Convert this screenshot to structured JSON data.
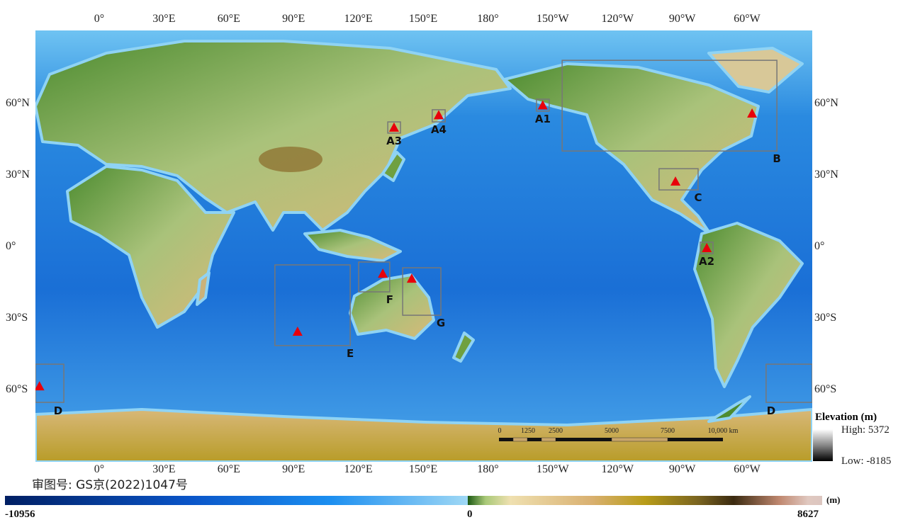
{
  "map": {
    "top_lon_labels": [
      "0°",
      "30°E",
      "60°E",
      "90°E",
      "120°E",
      "150°E",
      "180°",
      "150°W",
      "120°W",
      "90°W",
      "60°W"
    ],
    "bottom_lon_labels": [
      "0°",
      "30°E",
      "60°E",
      "90°E",
      "120°E",
      "150°E",
      "180°",
      "150°W",
      "120°W",
      "90°W",
      "60°W"
    ],
    "lat_labels": [
      "60°N",
      "30°N",
      "0°",
      "30°S",
      "60°S"
    ],
    "colors": {
      "ocean_deep": "#0a55c8",
      "ocean_shelf": "#8fd3f4",
      "land_low": "#3f7d25",
      "land_mid": "#d8b878",
      "land_high": "#7a5a20",
      "marker": "#e8000b",
      "box": "#777777"
    },
    "regions": [
      {
        "label": "A1",
        "lon": [
          -157.4,
          -151.5
        ],
        "lat": [
          56.7,
          61.7
        ]
      },
      {
        "label": "A2",
        "lon": [
          -81.5,
          -75.6
        ],
        "lat": [
          -3,
          1.8
        ]
      },
      {
        "label": "A3",
        "lon": [
          133.7,
          139.6
        ],
        "lat": [
          47.5,
          52.2
        ]
      },
      {
        "label": "A4",
        "lon": [
          154.3,
          160.3
        ],
        "lat": [
          52.2,
          57.3
        ]
      },
      {
        "label": "B",
        "lon": [
          -145.5,
          -46
        ],
        "lat": [
          40,
          78
        ]
      },
      {
        "label": "C",
        "lon": [
          -100.6,
          -82.5
        ],
        "lat": [
          23.7,
          32.6
        ]
      },
      {
        "label": "D",
        "lon": [
          -51,
          -16.4
        ],
        "lat": [
          -65.3,
          -49.3
        ]
      },
      {
        "label": "E",
        "lon": [
          81.4,
          116.3
        ],
        "lat": [
          -41.5,
          -7.7
        ]
      },
      {
        "label": "F",
        "lon": [
          120.2,
          134.6
        ],
        "lat": [
          -19,
          -6.5
        ]
      },
      {
        "label": "G",
        "lon": [
          140.6,
          158.3
        ],
        "lat": [
          -28.8,
          -8.9
        ]
      }
    ],
    "markers": [
      {
        "region": "A1",
        "lon": -154.5,
        "lat": 59.2
      },
      {
        "region": "A2",
        "lon": -78.5,
        "lat": -0.6
      },
      {
        "region": "A3",
        "lon": 136.6,
        "lat": 49.9
      },
      {
        "region": "A4",
        "lon": 157.3,
        "lat": 55.1
      },
      {
        "region": "B",
        "lon": -57.5,
        "lat": 55.8
      },
      {
        "region": "C",
        "lon": -93,
        "lat": 27.3
      },
      {
        "region": "D",
        "lon": -27.7,
        "lat": -58.5
      },
      {
        "region": "E",
        "lon": 91.9,
        "lat": -35.6
      },
      {
        "region": "F",
        "lon": 131.4,
        "lat": -11.3
      },
      {
        "region": "G",
        "lon": 144.8,
        "lat": -13.4
      }
    ]
  },
  "scale_bar": {
    "labels": [
      "0",
      "1250",
      "2500",
      "5000",
      "7500",
      "10,000 km"
    ]
  },
  "inset_legend": {
    "title": "Elevation (m)",
    "high": "High: 5372",
    "low": "Low: -8185"
  },
  "approval_number": "审图号: GS京(2022)1047号",
  "colorbar": {
    "min": "-10956",
    "zero": "0",
    "max": "8627",
    "unit": "(m)"
  }
}
